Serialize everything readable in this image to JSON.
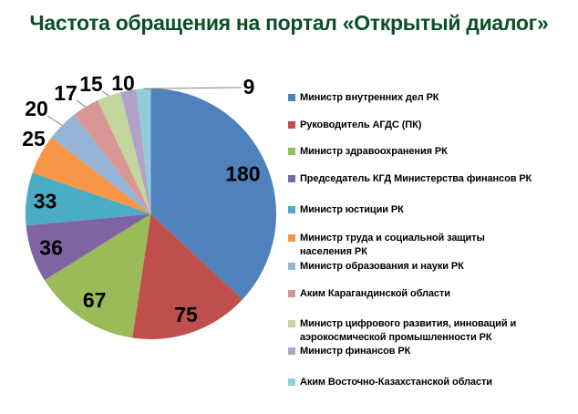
{
  "title": {
    "text": "Частота обращения на портал «Открытый диалог»",
    "color": "#0A4F2A"
  },
  "chart_data": {
    "type": "pie",
    "title": "Частота обращения на портал «Открытый диалог»",
    "legend_position": "right",
    "data_labels": "values",
    "labels": [
      "Министр внутренних дел РК",
      "Руководитель АГДС (ПК)",
      "Министр здравоохранения РК",
      "Председатель КГД Министерства финансов РК",
      "Министр юстиции РК",
      "Министр труда и социальной защиты\nнаселения РК",
      "Министр образования и науки РК",
      "Аким Карагандинской области",
      "Министр цифрового развития, инноваций и\nаэрокосмической промышленности РК",
      "Министр финансов РК",
      "Аким Восточно-Казахстанской области"
    ],
    "values": [
      180,
      75,
      67,
      36,
      33,
      25,
      20,
      17,
      15,
      10,
      9
    ],
    "colors": [
      "#4F81BD",
      "#C0504D",
      "#9BBB59",
      "#8064A2",
      "#4BACC6",
      "#F79646",
      "#95B3D7",
      "#D99694",
      "#C3D69B",
      "#B3A2C7",
      "#92CDDC"
    ],
    "data_label_color": "#000000",
    "leader_line_color": "#808080"
  }
}
